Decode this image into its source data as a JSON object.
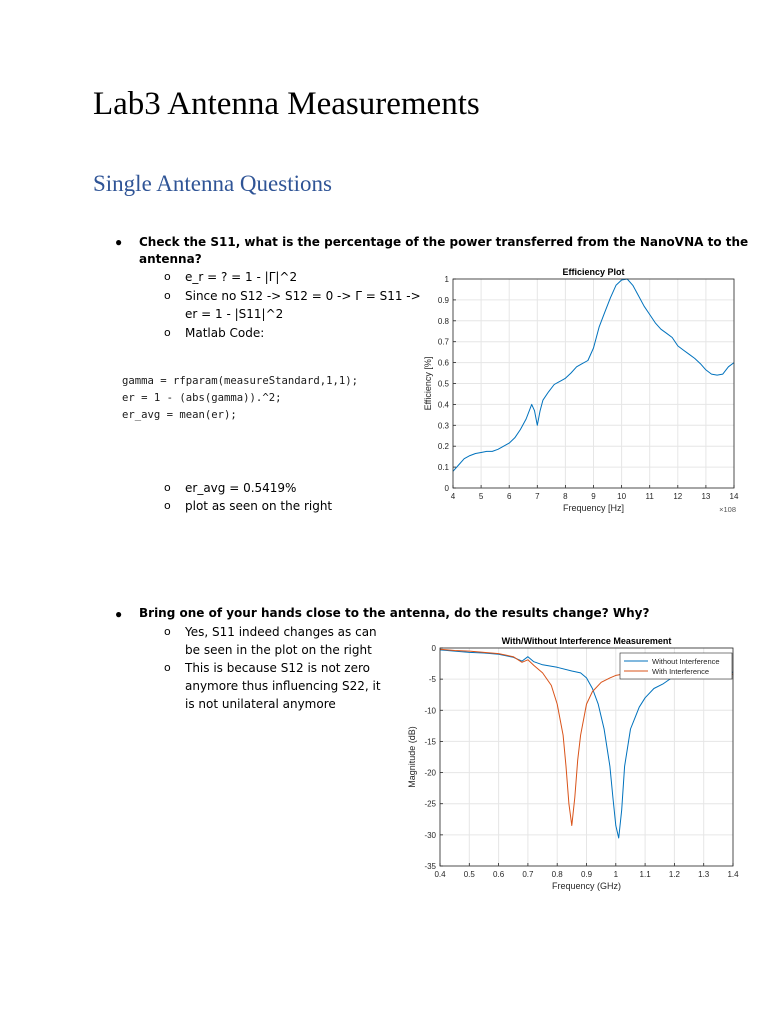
{
  "document": {
    "title": "Lab3 Antenna Measurements",
    "section_heading": "Single Antenna Questions",
    "questions": [
      {
        "question_line1": "Check the S11, what is the percentage of the power transferred from the NanoVNA to the",
        "question_line2": "antenna?",
        "answers": [
          "e_r = ? = 1 - |Γ|^2",
          "Since no S12 -> S12 = 0 -> Γ = S11 ->",
          "er = 1 - |S11|^2",
          "Matlab Code:"
        ],
        "code_lines": [
          "gamma = rfparam(measureStandard,1,1);",
          "er = 1 - (abs(gamma)).^2;",
          "er_avg = mean(er);"
        ],
        "results": [
          "er_avg = 0.5419%",
          "plot as seen on the right"
        ]
      },
      {
        "question_line1": "Bring one of your hands close to the antenna, do the results change? Why?",
        "answers": [
          "Yes, S11 indeed changes as can",
          "be seen in the plot on the right",
          "This is because S12 is not zero",
          "anymore thus influencing S22, it",
          "is not unilateral anymore"
        ]
      }
    ],
    "bullet_symbol": "●",
    "sub_bullet_symbol": "o"
  },
  "chart_data": [
    {
      "type": "line",
      "title": "Efficiency Plot",
      "xlabel": "Frequency [Hz]",
      "ylabel": "Efficiency [%]",
      "x_exponent_label": "×10^8",
      "xlim": [
        4,
        14
      ],
      "ylim": [
        0,
        1
      ],
      "xticks": [
        "4",
        "5",
        "6",
        "7",
        "8",
        "9",
        "10",
        "11",
        "12",
        "13",
        "14"
      ],
      "yticks": [
        "0",
        "0.1",
        "0.2",
        "0.3",
        "0.4",
        "0.5",
        "0.6",
        "0.7",
        "0.8",
        "0.9",
        "1"
      ],
      "grid": true,
      "series": [
        {
          "name": "Efficiency",
          "color": "#0072bd",
          "x": [
            4.0,
            4.2,
            4.4,
            4.6,
            4.8,
            5.0,
            5.2,
            5.4,
            5.6,
            5.8,
            6.0,
            6.2,
            6.4,
            6.6,
            6.8,
            6.9,
            7.0,
            7.1,
            7.2,
            7.4,
            7.6,
            7.8,
            8.0,
            8.2,
            8.4,
            8.6,
            8.8,
            9.0,
            9.2,
            9.4,
            9.6,
            9.8,
            10.0,
            10.2,
            10.4,
            10.6,
            10.8,
            11.0,
            11.2,
            11.4,
            11.6,
            11.8,
            12.0,
            12.2,
            12.4,
            12.6,
            12.8,
            13.0,
            13.2,
            13.4,
            13.6,
            13.8,
            14.0
          ],
          "y": [
            0.08,
            0.11,
            0.14,
            0.155,
            0.165,
            0.17,
            0.175,
            0.175,
            0.185,
            0.2,
            0.215,
            0.24,
            0.28,
            0.33,
            0.4,
            0.37,
            0.3,
            0.37,
            0.42,
            0.46,
            0.495,
            0.51,
            0.525,
            0.55,
            0.58,
            0.595,
            0.61,
            0.67,
            0.77,
            0.84,
            0.91,
            0.97,
            0.995,
            1.0,
            0.97,
            0.92,
            0.87,
            0.83,
            0.79,
            0.76,
            0.74,
            0.72,
            0.68,
            0.66,
            0.64,
            0.62,
            0.595,
            0.565,
            0.545,
            0.54,
            0.545,
            0.58,
            0.6
          ]
        }
      ]
    },
    {
      "type": "line",
      "title": "With/Without Interference Measurement",
      "xlabel": "Frequency (GHz)",
      "ylabel": "Magnitude (dB)",
      "xlim": [
        0.4,
        1.4
      ],
      "ylim": [
        -35,
        0
      ],
      "xticks": [
        "0.4",
        "0.5",
        "0.6",
        "0.7",
        "0.8",
        "0.9",
        "1",
        "1.1",
        "1.2",
        "1.3",
        "1.4"
      ],
      "yticks": [
        "0",
        "-5",
        "-10",
        "-15",
        "-20",
        "-25",
        "-30",
        "-35"
      ],
      "grid": true,
      "legend_position": "northeast",
      "series": [
        {
          "name": "Without Interference",
          "color": "#0072bd",
          "x": [
            0.4,
            0.45,
            0.5,
            0.55,
            0.6,
            0.65,
            0.68,
            0.7,
            0.72,
            0.75,
            0.8,
            0.85,
            0.88,
            0.9,
            0.92,
            0.94,
            0.96,
            0.98,
            0.99,
            1.0,
            1.01,
            1.02,
            1.03,
            1.05,
            1.08,
            1.1,
            1.13,
            1.16,
            1.2,
            1.25,
            1.3,
            1.35,
            1.4
          ],
          "y": [
            -0.3,
            -0.5,
            -0.7,
            -0.8,
            -1.0,
            -1.5,
            -2.1,
            -1.4,
            -2.2,
            -2.7,
            -3.1,
            -3.7,
            -4.0,
            -4.8,
            -6.5,
            -9.0,
            -13.0,
            -19.0,
            -24.0,
            -28.5,
            -30.5,
            -26.0,
            -19.0,
            -13.0,
            -9.5,
            -8.0,
            -6.5,
            -5.8,
            -4.5,
            -4.0,
            -3.8,
            -3.8,
            -3.9
          ]
        },
        {
          "name": "With Interference",
          "color": "#d95319",
          "x": [
            0.4,
            0.45,
            0.5,
            0.55,
            0.6,
            0.65,
            0.68,
            0.7,
            0.72,
            0.75,
            0.78,
            0.8,
            0.82,
            0.83,
            0.84,
            0.85,
            0.86,
            0.87,
            0.88,
            0.9,
            0.92,
            0.95,
            0.98,
            1.0,
            1.05,
            1.1,
            1.2,
            1.3,
            1.4
          ],
          "y": [
            -0.2,
            -0.4,
            -0.5,
            -0.7,
            -0.9,
            -1.4,
            -2.3,
            -1.9,
            -2.8,
            -4.0,
            -6.0,
            -9.0,
            -14.0,
            -19.0,
            -25.0,
            -28.5,
            -24.0,
            -18.0,
            -14.0,
            -9.0,
            -7.0,
            -5.5,
            -4.8,
            -4.4,
            -4.0,
            -3.9,
            -3.8,
            -3.8,
            -4.2
          ]
        }
      ]
    }
  ]
}
